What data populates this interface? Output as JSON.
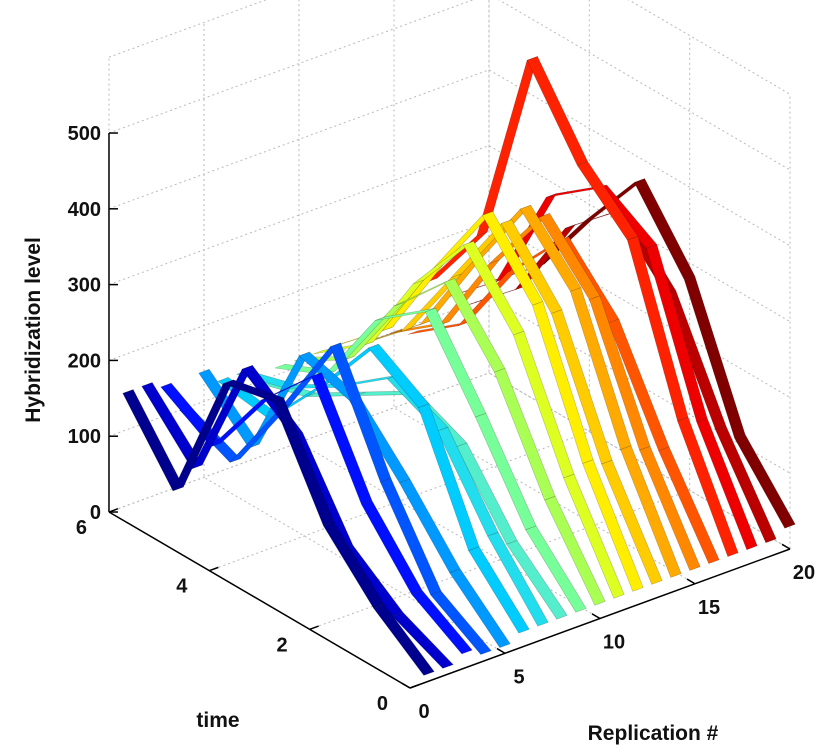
{
  "chart_data": {
    "type": "3d-ribbon",
    "title": "",
    "xlabel": "Replication #",
    "ylabel": "time",
    "zlabel": "Hybridization level",
    "xlim": [
      0,
      20
    ],
    "ylim": [
      0,
      6
    ],
    "zlim": [
      0,
      500
    ],
    "x_ticks": [
      "0",
      "5",
      "10",
      "15",
      "20"
    ],
    "y_ticks": [
      "0",
      "2",
      "4",
      "6"
    ],
    "z_ticks": [
      "0",
      "100",
      "200",
      "300",
      "400",
      "500"
    ],
    "grid": true,
    "colormap": "jet",
    "time": [
      0,
      1,
      2,
      3,
      4,
      5,
      6
    ],
    "series": [
      {
        "replication": 1,
        "color": "#00008f",
        "values": [
          10,
          60,
          130,
          255,
          240,
          60,
          150
        ]
      },
      {
        "replication": 2,
        "color": "#0000cc",
        "values": [
          10,
          40,
          90,
          200,
          250,
          80,
          150
        ]
      },
      {
        "replication": 3,
        "color": "#0010ff",
        "values": [
          20,
          60,
          140,
          270,
          200,
          100,
          140
        ]
      },
      {
        "replication": 4,
        "color": "#0055ff",
        "values": [
          10,
          50,
          160,
          300,
          180,
          70,
          100
        ]
      },
      {
        "replication": 5,
        "color": "#0099ff",
        "values": [
          10,
          70,
          150,
          220,
          240,
          80,
          140
        ]
      },
      {
        "replication": 6,
        "color": "#00ccff",
        "values": [
          20,
          90,
          240,
          280,
          190,
          110,
          120
        ]
      },
      {
        "replication": 7,
        "color": "#22ddee",
        "values": [
          20,
          100,
          200,
          230,
          180,
          140,
          120
        ]
      },
      {
        "replication": 8,
        "color": "#55eecc",
        "values": [
          20,
          80,
          170,
          200,
          160,
          120,
          100
        ]
      },
      {
        "replication": 9,
        "color": "#77ff99",
        "values": [
          20,
          90,
          200,
          300,
          250,
          140,
          110
        ]
      },
      {
        "replication": 10,
        "color": "#aaff55",
        "values": [
          20,
          120,
          250,
          330,
          260,
          150,
          110
        ]
      },
      {
        "replication": 11,
        "color": "#ddff22",
        "values": [
          20,
          140,
          290,
          370,
          280,
          160,
          110
        ]
      },
      {
        "replication": 12,
        "color": "#ffee00",
        "values": [
          20,
          150,
          320,
          400,
          290,
          170,
          110
        ]
      },
      {
        "replication": 13,
        "color": "#ffcc00",
        "values": [
          20,
          140,
          300,
          380,
          270,
          160,
          100
        ]
      },
      {
        "replication": 14,
        "color": "#ffaa00",
        "values": [
          20,
          150,
          320,
          390,
          280,
          160,
          100
        ]
      },
      {
        "replication": 15,
        "color": "#ff8800",
        "values": [
          20,
          140,
          300,
          370,
          270,
          150,
          100
        ]
      },
      {
        "replication": 16,
        "color": "#ff5500",
        "values": [
          20,
          130,
          260,
          330,
          250,
          140,
          90
        ]
      },
      {
        "replication": 17,
        "color": "#ff2200",
        "values": [
          20,
          160,
          360,
          420,
          520,
          250,
          150
        ]
      },
      {
        "replication": 18,
        "color": "#ee0000",
        "values": [
          20,
          150,
          340,
          380,
          330,
          180,
          120
        ]
      },
      {
        "replication": 19,
        "color": "#bb0000",
        "values": [
          20,
          130,
          270,
          340,
          280,
          160,
          100
        ]
      },
      {
        "replication": 20,
        "color": "#800000",
        "values": [
          30,
          110,
          280,
          370,
          280,
          180,
          120
        ]
      }
    ]
  }
}
